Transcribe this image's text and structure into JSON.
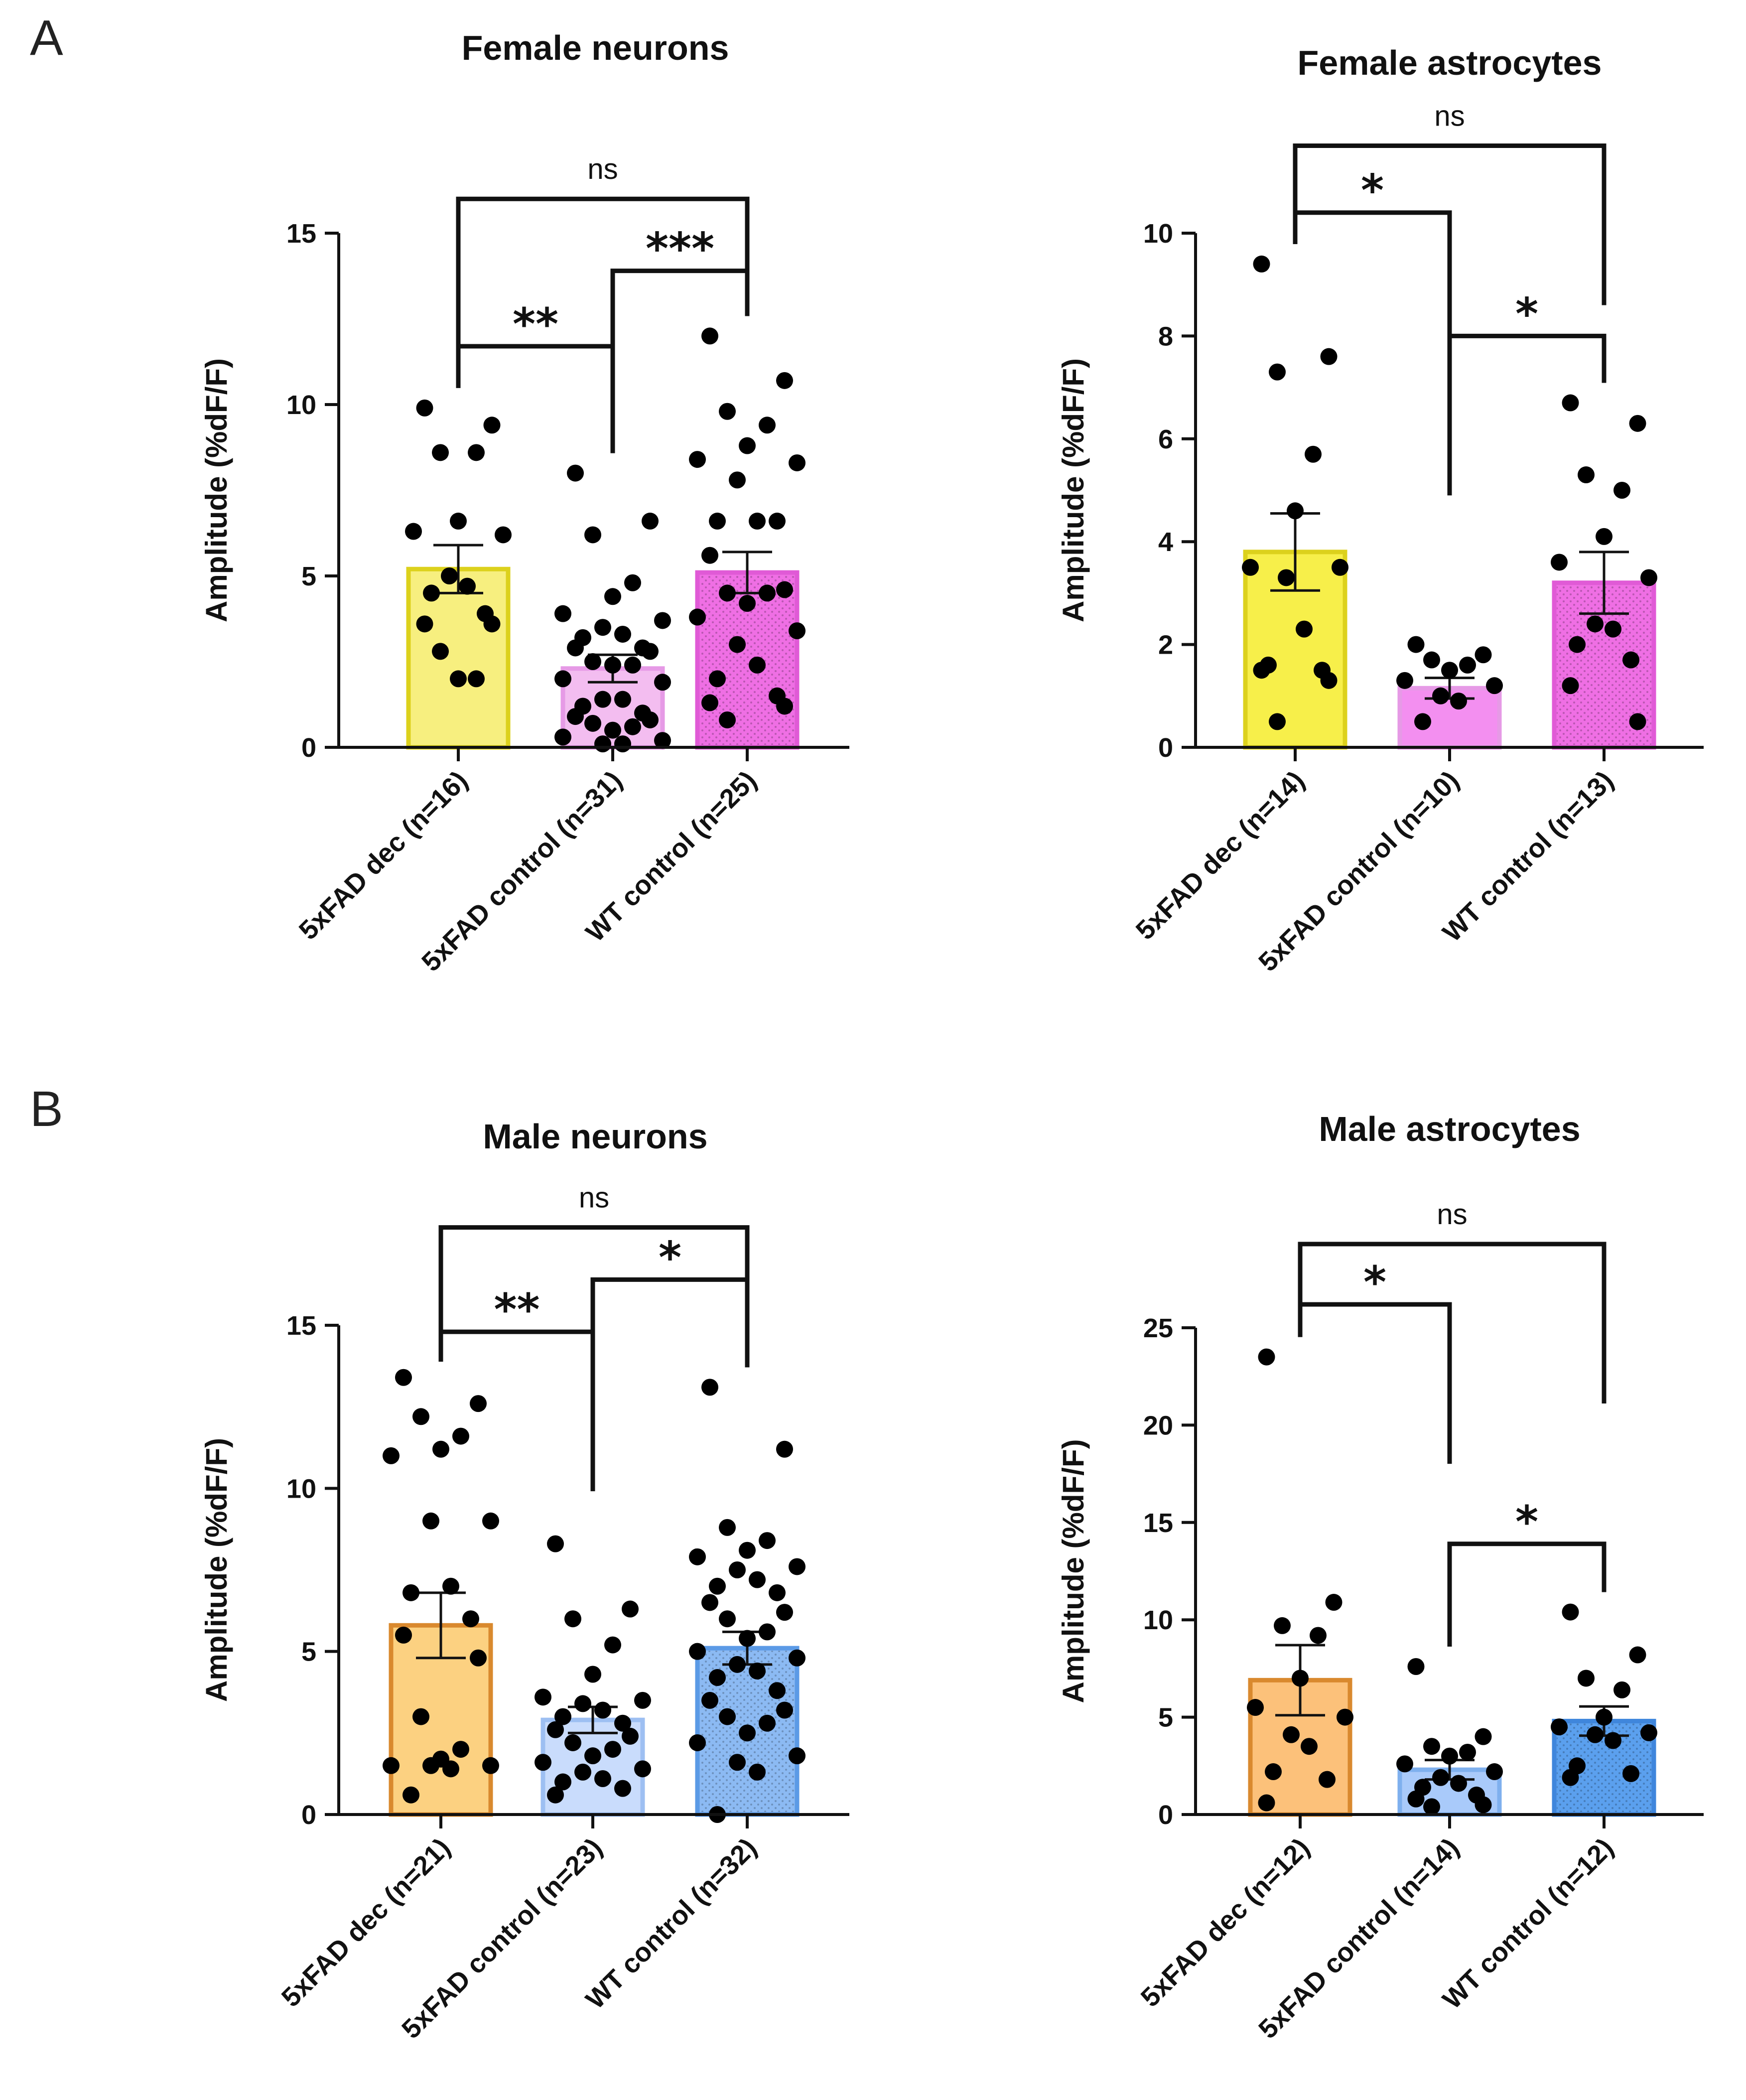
{
  "panels": [
    {
      "letter": "A"
    },
    {
      "letter": "B"
    }
  ],
  "chart_data": [
    {
      "type": "bar",
      "title": "Female neurons",
      "ylabel": "Amplitude (%dF/F)",
      "xlabel": "",
      "ylim": [
        0,
        15
      ],
      "yticks": [
        0,
        5,
        10,
        15
      ],
      "categories": [
        "5xFAD dec (n=16)",
        "5xFAD control (n=31)",
        "WT control (n=25)"
      ],
      "bars": [
        {
          "mean": 5.2,
          "sem": 0.7,
          "fill": "#f7ef7f",
          "stroke": "#dcd11c",
          "pattern": "none",
          "points": [
            9.9,
            9.4,
            8.6,
            8.6,
            6.6,
            6.3,
            6.2,
            5.0,
            4.7,
            4.5,
            3.9,
            3.6,
            3.6,
            2.8,
            2.0,
            2.0
          ]
        },
        {
          "mean": 2.3,
          "sem": 0.4,
          "fill": "#f3bdf0",
          "stroke": "#e69ae6",
          "pattern": "none",
          "points": [
            8.0,
            6.6,
            6.2,
            4.8,
            4.4,
            3.9,
            3.7,
            3.5,
            3.3,
            3.2,
            2.9,
            2.9,
            2.8,
            2.5,
            2.4,
            2.4,
            2.0,
            1.9,
            1.4,
            1.4,
            1.2,
            1.0,
            0.9,
            0.8,
            0.7,
            0.6,
            0.5,
            0.3,
            0.2,
            0.1,
            0.1
          ]
        },
        {
          "mean": 5.1,
          "sem": 0.6,
          "fill": "#ef6fe4",
          "stroke": "#e05ad6",
          "pattern": "dots",
          "points": [
            12.0,
            10.7,
            9.8,
            9.4,
            8.8,
            8.4,
            8.3,
            7.8,
            6.6,
            6.6,
            6.6,
            5.6,
            4.6,
            4.5,
            4.5,
            4.2,
            3.8,
            3.4,
            3.0,
            2.4,
            2.0,
            1.5,
            1.3,
            1.2,
            0.8
          ]
        }
      ],
      "significance": [
        {
          "from": 0,
          "to": 2,
          "label": "ns",
          "y": 16.0
        },
        {
          "from": 1,
          "to": 2,
          "label": "***",
          "y": 13.9
        },
        {
          "from": 0,
          "to": 1,
          "label": "**",
          "y": 11.7
        }
      ]
    },
    {
      "type": "bar",
      "title": "Female astrocytes",
      "ylabel": "Amplitude (%dF/F)",
      "xlabel": "",
      "ylim": [
        0,
        10
      ],
      "yticks": [
        0,
        2,
        4,
        6,
        8,
        10
      ],
      "categories": [
        "5xFAD dec (n=14)",
        "5xFAD control (n=10)",
        "WT control (n=13)"
      ],
      "bars": [
        {
          "mean": 3.8,
          "sem": 0.75,
          "fill": "#f7ef4a",
          "stroke": "#dcd11c",
          "pattern": "none",
          "points": [
            9.4,
            7.6,
            7.3,
            5.7,
            4.6,
            3.5,
            3.5,
            3.3,
            2.3,
            1.6,
            1.5,
            1.5,
            1.3,
            0.5
          ]
        },
        {
          "mean": 1.15,
          "sem": 0.2,
          "fill": "#f38ff0",
          "stroke": "#e69ae6",
          "pattern": "none",
          "points": [
            2.0,
            1.8,
            1.7,
            1.6,
            1.5,
            1.3,
            1.2,
            1.0,
            0.9,
            0.5
          ]
        },
        {
          "mean": 3.2,
          "sem": 0.6,
          "fill": "#ef6fe4",
          "stroke": "#e05ad6",
          "pattern": "dots",
          "points": [
            6.7,
            6.3,
            5.3,
            5.0,
            4.1,
            3.6,
            3.3,
            2.4,
            2.3,
            2.0,
            1.7,
            1.2,
            0.5
          ]
        }
      ],
      "significance": [
        {
          "from": 0,
          "to": 2,
          "label": "ns",
          "y": 11.7
        },
        {
          "from": 0,
          "to": 1,
          "label": "*",
          "y": 10.4
        },
        {
          "from": 1,
          "to": 2,
          "label": "*",
          "y": 8.0
        }
      ]
    },
    {
      "type": "bar",
      "title": "Male neurons",
      "ylabel": "Amplitude (%dF/F)",
      "xlabel": "",
      "ylim": [
        0,
        15
      ],
      "yticks": [
        0,
        5,
        10,
        15
      ],
      "categories": [
        "5xFAD dec (n=21)",
        "5xFAD control (n=23)",
        "WT control (n=32)"
      ],
      "bars": [
        {
          "mean": 5.8,
          "sem": 1.0,
          "fill": "#fcd181",
          "stroke": "#d9892e",
          "pattern": "none",
          "points": [
            13.4,
            12.6,
            12.2,
            11.6,
            11.2,
            11.0,
            9.0,
            9.0,
            7.0,
            6.8,
            6.0,
            5.5,
            4.8,
            3.0,
            2.0,
            1.7,
            1.5,
            1.5,
            1.5,
            1.4,
            0.6
          ]
        },
        {
          "mean": 2.9,
          "sem": 0.4,
          "fill": "#c9dcfc",
          "stroke": "#9dbff2",
          "pattern": "none",
          "points": [
            8.3,
            6.3,
            6.0,
            5.2,
            4.3,
            3.6,
            3.5,
            3.4,
            3.2,
            3.0,
            2.8,
            2.6,
            2.4,
            2.2,
            2.0,
            1.8,
            1.6,
            1.4,
            1.3,
            1.1,
            1.0,
            0.8,
            0.6
          ]
        },
        {
          "mean": 5.1,
          "sem": 0.5,
          "fill": "#8cbaf3",
          "stroke": "#5b9ae6",
          "pattern": "dots",
          "points": [
            13.1,
            11.2,
            8.8,
            8.4,
            8.1,
            7.9,
            7.6,
            7.5,
            7.2,
            7.0,
            6.8,
            6.5,
            6.2,
            6.0,
            5.6,
            5.4,
            5.0,
            4.8,
            4.6,
            4.4,
            4.2,
            3.8,
            3.5,
            3.2,
            3.0,
            2.8,
            2.5,
            2.2,
            1.8,
            1.6,
            1.3,
            0.0
          ]
        }
      ],
      "significance": [
        {
          "from": 0,
          "to": 2,
          "label": "ns",
          "y": 18.0
        },
        {
          "from": 1,
          "to": 2,
          "label": "*",
          "y": 16.4
        },
        {
          "from": 0,
          "to": 1,
          "label": "**",
          "y": 14.8
        }
      ]
    },
    {
      "type": "bar",
      "title": "Male astrocytes",
      "ylabel": "Amplitude (%dF/F)",
      "xlabel": "",
      "ylim": [
        0,
        25
      ],
      "yticks": [
        0,
        5,
        10,
        15,
        20,
        25
      ],
      "categories": [
        "5xFAD dec (n=12)",
        "5xFAD control (n=14)",
        "WT control (n=12)"
      ],
      "bars": [
        {
          "mean": 6.9,
          "sem": 1.8,
          "fill": "#fcc17a",
          "stroke": "#d9892e",
          "pattern": "none",
          "points": [
            23.5,
            10.9,
            9.7,
            9.2,
            7.0,
            5.5,
            5.0,
            4.1,
            3.5,
            2.2,
            1.8,
            0.6
          ]
        },
        {
          "mean": 2.3,
          "sem": 0.5,
          "fill": "#a9cafa",
          "stroke": "#7fb0ee",
          "pattern": "none",
          "points": [
            7.6,
            4.0,
            3.5,
            3.2,
            3.0,
            2.6,
            2.2,
            1.9,
            1.6,
            1.4,
            1.0,
            0.8,
            0.5,
            0.4
          ]
        },
        {
          "mean": 4.8,
          "sem": 0.75,
          "fill": "#5ba0ee",
          "stroke": "#3f86dc",
          "pattern": "dots",
          "points": [
            10.4,
            8.2,
            7.0,
            6.4,
            5.0,
            4.5,
            4.2,
            4.1,
            3.8,
            2.5,
            2.1,
            1.9
          ]
        }
      ],
      "significance": [
        {
          "from": 0,
          "to": 2,
          "label": "ns",
          "y": 29.3
        },
        {
          "from": 0,
          "to": 1,
          "label": "*",
          "y": 26.2
        },
        {
          "from": 1,
          "to": 2,
          "label": "*",
          "y": 13.9
        }
      ]
    }
  ]
}
